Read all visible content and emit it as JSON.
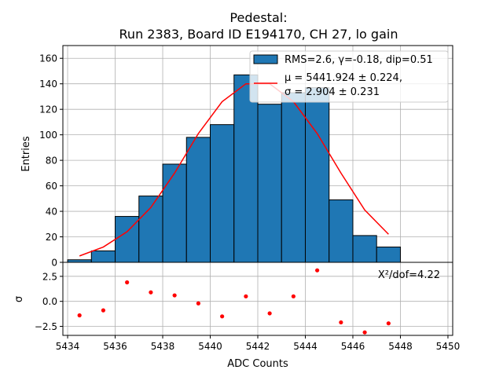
{
  "chart_data": {
    "type": "bar",
    "title_lines": [
      "Pedestal:",
      "Run 2383, Board ID E194170, CH 27, lo gain"
    ],
    "xlabel": "ADC Counts",
    "xlim": [
      5433.8,
      5450.2
    ],
    "x_ticks": [
      5434,
      5436,
      5438,
      5440,
      5442,
      5444,
      5446,
      5448,
      5450
    ],
    "main": {
      "ylabel": "Entries",
      "ylim": [
        0,
        170
      ],
      "y_ticks": [
        0,
        20,
        40,
        60,
        80,
        100,
        120,
        140,
        160
      ],
      "grid": true,
      "histogram": {
        "name": "RMS=2.6, γ=-0.18, dip=0.51",
        "bin_edges": [
          5434,
          5435,
          5436,
          5437,
          5438,
          5439,
          5440,
          5441,
          5442,
          5443,
          5444,
          5445,
          5446,
          5447,
          5448
        ],
        "counts": [
          2,
          9,
          36,
          52,
          77,
          98,
          108,
          147,
          124,
          133,
          137,
          49,
          21,
          12
        ],
        "fill_color": "#1f77b4",
        "edge_color": "#000000"
      },
      "fit": {
        "name_line1": "μ = 5441.924 ± 0.224,",
        "name_line2": "σ = 2.904 ± 0.231",
        "mu": 5441.924,
        "sigma": 2.904,
        "x": [
          5434.5,
          5435.5,
          5436.5,
          5437.5,
          5438.5,
          5439.5,
          5440.5,
          5441.5,
          5442.5,
          5443.5,
          5444.5,
          5445.5,
          5446.5,
          5447.5
        ],
        "y": [
          5,
          12,
          24,
          43,
          70,
          101,
          126,
          140,
          140,
          126,
          101,
          70,
          41,
          22
        ],
        "color": "#ff0000"
      },
      "legend_position": "upper-right"
    },
    "residuals": {
      "ylabel": "σ",
      "ylim": [
        -3.4,
        3.9
      ],
      "y_ticks": [
        -2.5,
        0.0,
        2.5
      ],
      "y_tick_labels": [
        "−2.5",
        "0.0",
        "2.5"
      ],
      "grid": true,
      "annotation": "X²/dof=4.22",
      "x": [
        5434.5,
        5435.5,
        5436.5,
        5437.5,
        5438.5,
        5439.5,
        5440.5,
        5441.5,
        5442.5,
        5443.5,
        5444.5,
        5445.5,
        5446.5,
        5447.5
      ],
      "values": [
        -1.4,
        -0.9,
        1.9,
        0.9,
        0.6,
        -0.2,
        -1.5,
        0.5,
        -1.2,
        0.5,
        3.1,
        -2.1,
        -3.1,
        -2.2
      ],
      "color": "#ff0000"
    }
  }
}
